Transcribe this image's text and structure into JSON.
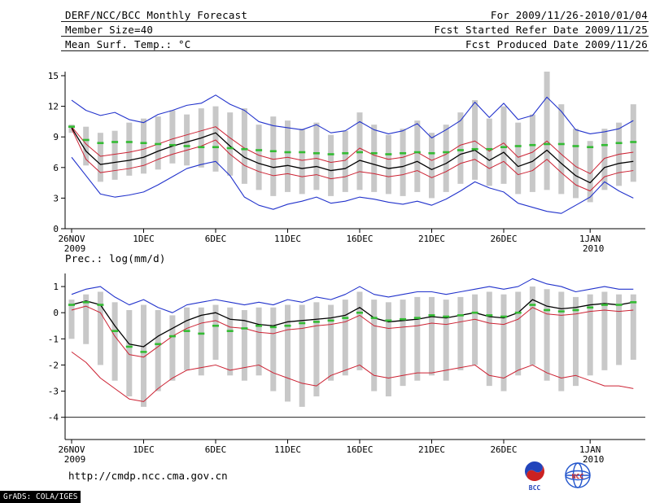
{
  "header": {
    "title": "DERF/NCC/BCC Monthly Forecast",
    "member_size": "Member Size=40",
    "for_range": "For 2009/11/26-2010/01/04",
    "fcst_started": "Fcst Started Refer Date 2009/11/25",
    "fcst_produced": "Fcst Produced Date 2009/11/26"
  },
  "footer": {
    "url": "http://cmdp.ncc.cma.gov.cn",
    "grads_credit": "GrADS: COLA/IGES",
    "bcc_logo_text": "BCC",
    "ncc_logo_text": "NCC"
  },
  "colors": {
    "bars": "#c8c8c8",
    "envelope": "#2233cc",
    "percentile": "#cc2233",
    "mean": "#000000",
    "climatology": "#33bb33"
  },
  "chart_data": [
    {
      "type": "line",
      "title": "Mean Surf. Temp.: °C",
      "x_range": "2009-11-26 to 2010-01-04",
      "n_days": 40,
      "ylim": [
        0,
        15.4
      ],
      "yticks": [
        0,
        3,
        6,
        9,
        12,
        15
      ],
      "xticks": [
        {
          "i": 0,
          "label": "26NOV",
          "sub": "2009"
        },
        {
          "i": 5,
          "label": "1DEC"
        },
        {
          "i": 10,
          "label": "6DEC"
        },
        {
          "i": 15,
          "label": "11DEC"
        },
        {
          "i": 20,
          "label": "16DEC"
        },
        {
          "i": 25,
          "label": "21DEC"
        },
        {
          "i": 30,
          "label": "26DEC"
        },
        {
          "i": 36,
          "label": "1JAN",
          "sub": "2010"
        }
      ],
      "hlines": [],
      "bars": {
        "name": "ensemble-spread",
        "color": "#c8c8c8",
        "hi": [
          10.2,
          10.0,
          9.4,
          9.6,
          10.4,
          10.8,
          11.0,
          11.6,
          11.2,
          11.8,
          12.0,
          11.4,
          11.8,
          10.2,
          11.0,
          10.6,
          9.8,
          10.4,
          9.2,
          9.6,
          11.4,
          10.2,
          9.2,
          9.8,
          10.6,
          9.4,
          10.2,
          11.4,
          12.6,
          10.8,
          12.0,
          10.4,
          11.2,
          15.4,
          12.2,
          9.8,
          8.6,
          9.8,
          10.4,
          12.2
        ],
        "lo": [
          9.4,
          6.2,
          4.6,
          4.8,
          5.2,
          5.4,
          5.8,
          6.4,
          6.2,
          6.0,
          5.6,
          5.2,
          4.4,
          3.8,
          3.2,
          3.6,
          3.4,
          3.8,
          3.2,
          3.6,
          3.8,
          3.6,
          3.4,
          3.2,
          3.6,
          3.0,
          3.6,
          4.4,
          4.8,
          4.2,
          4.4,
          3.4,
          3.6,
          3.8,
          3.4,
          3.0,
          2.6,
          3.8,
          4.2,
          4.6
        ]
      },
      "series": [
        {
          "name": "envelope-max",
          "color": "#2233cc",
          "width": 1.1,
          "values": [
            12.6,
            11.6,
            11.1,
            11.4,
            10.7,
            10.4,
            11.2,
            11.6,
            12.1,
            12.3,
            13.1,
            12.2,
            11.6,
            10.5,
            10.1,
            9.9,
            9.7,
            10.2,
            9.4,
            9.6,
            10.5,
            9.7,
            9.3,
            9.6,
            10.3,
            8.9,
            9.7,
            10.6,
            12.4,
            10.9,
            12.3,
            10.7,
            11.1,
            12.9,
            11.5,
            9.7,
            9.3,
            9.5,
            9.8,
            10.6
          ]
        },
        {
          "name": "percentile-upper",
          "color": "#cc2233",
          "width": 1,
          "values": [
            10.0,
            8.3,
            7.1,
            7.3,
            7.5,
            7.8,
            8.3,
            8.8,
            9.2,
            9.6,
            10.0,
            8.9,
            7.9,
            7.2,
            6.8,
            7.0,
            6.7,
            6.9,
            6.5,
            6.7,
            7.9,
            7.2,
            6.8,
            7.0,
            7.5,
            6.7,
            7.3,
            8.2,
            8.6,
            7.6,
            8.4,
            7.0,
            7.5,
            8.6,
            7.3,
            6.1,
            5.4,
            6.9,
            7.3,
            7.5
          ]
        },
        {
          "name": "percentile-lower",
          "color": "#cc2233",
          "width": 1,
          "values": [
            9.8,
            6.8,
            5.5,
            5.7,
            5.9,
            6.2,
            6.8,
            7.3,
            7.7,
            8.1,
            8.7,
            7.3,
            6.2,
            5.6,
            5.2,
            5.4,
            5.1,
            5.3,
            4.9,
            5.1,
            5.6,
            5.4,
            5.1,
            5.3,
            5.7,
            5.0,
            5.6,
            6.4,
            6.8,
            5.9,
            6.6,
            5.3,
            5.7,
            6.8,
            5.5,
            4.3,
            3.7,
            5.1,
            5.5,
            5.7
          ]
        },
        {
          "name": "envelope-min",
          "color": "#2233cc",
          "width": 1.1,
          "values": [
            7.0,
            5.2,
            3.4,
            3.1,
            3.3,
            3.6,
            4.3,
            5.1,
            5.9,
            6.3,
            6.6,
            5.2,
            3.1,
            2.3,
            1.9,
            2.4,
            2.7,
            3.1,
            2.5,
            2.7,
            3.1,
            2.9,
            2.6,
            2.4,
            2.7,
            2.3,
            2.9,
            3.7,
            4.6,
            4.0,
            3.6,
            2.5,
            2.1,
            1.7,
            1.5,
            2.3,
            3.1,
            4.6,
            3.7,
            3.0
          ]
        },
        {
          "name": "ensemble-mean",
          "color": "#000000",
          "width": 1.3,
          "values": [
            9.9,
            7.6,
            6.3,
            6.5,
            6.7,
            7.0,
            7.6,
            8.1,
            8.5,
            8.9,
            9.4,
            8.1,
            7.0,
            6.4,
            6.0,
            6.2,
            5.9,
            6.1,
            5.7,
            5.9,
            6.7,
            6.3,
            5.9,
            6.1,
            6.6,
            5.8,
            6.4,
            7.3,
            7.7,
            6.7,
            7.5,
            6.1,
            6.6,
            7.7,
            6.4,
            5.2,
            4.5,
            6.0,
            6.4,
            6.6
          ]
        },
        {
          "name": "climatology",
          "color": "#33bb33",
          "style": "dash-markers",
          "values": [
            10.0,
            8.7,
            8.4,
            8.5,
            8.5,
            8.4,
            8.3,
            8.2,
            8.1,
            8.0,
            8.0,
            7.9,
            7.8,
            7.7,
            7.6,
            7.5,
            7.5,
            7.4,
            7.3,
            7.4,
            7.5,
            7.4,
            7.3,
            7.4,
            7.5,
            7.4,
            7.5,
            7.7,
            7.8,
            7.8,
            8.0,
            8.1,
            8.2,
            8.3,
            8.3,
            8.1,
            8.0,
            8.2,
            8.4,
            8.5
          ]
        }
      ]
    },
    {
      "type": "line",
      "title": "Prec.: log(mm/d)",
      "x_range": "2009-11-26 to 2010-01-04",
      "n_days": 40,
      "ylim": [
        -4.85,
        1.5
      ],
      "yticks": [
        1,
        0,
        -1,
        -2,
        -3,
        -4
      ],
      "xticks": [
        {
          "i": 0,
          "label": "26NOV",
          "sub": "2009"
        },
        {
          "i": 5,
          "label": "1DEC"
        },
        {
          "i": 10,
          "label": "6DEC"
        },
        {
          "i": 15,
          "label": "11DEC"
        },
        {
          "i": 20,
          "label": "16DEC"
        },
        {
          "i": 25,
          "label": "21DEC"
        },
        {
          "i": 30,
          "label": "26DEC"
        },
        {
          "i": 36,
          "label": "1JAN",
          "sub": "2010"
        }
      ],
      "hlines": [
        -4
      ],
      "bars": {
        "name": "ensemble-spread",
        "color": "#c8c8c8",
        "hi": [
          0.5,
          0.7,
          0.8,
          0.4,
          0.1,
          0.3,
          0.1,
          -0.1,
          0.2,
          0.2,
          0.3,
          0.2,
          0.1,
          0.2,
          0.2,
          0.3,
          0.3,
          0.4,
          0.3,
          0.5,
          0.8,
          0.5,
          0.4,
          0.5,
          0.6,
          0.6,
          0.5,
          0.6,
          0.7,
          0.8,
          0.7,
          0.8,
          1.0,
          0.9,
          0.8,
          0.6,
          0.7,
          0.8,
          0.7,
          0.7
        ],
        "lo": [
          -1.0,
          -1.2,
          -2.0,
          -2.6,
          -3.2,
          -3.6,
          -3.0,
          -2.6,
          -2.2,
          -2.4,
          -1.8,
          -2.4,
          -2.6,
          -2.4,
          -3.0,
          -3.4,
          -3.6,
          -3.2,
          -2.6,
          -2.4,
          -2.2,
          -3.0,
          -3.2,
          -2.8,
          -2.6,
          -2.4,
          -2.6,
          -2.2,
          -2.0,
          -2.8,
          -3.0,
          -2.4,
          -2.0,
          -2.6,
          -3.0,
          -2.8,
          -2.4,
          -2.2,
          -2.0,
          -1.8
        ]
      },
      "series": [
        {
          "name": "envelope-max",
          "color": "#2233cc",
          "width": 1.1,
          "values": [
            0.7,
            0.9,
            1.0,
            0.6,
            0.3,
            0.5,
            0.2,
            0.0,
            0.3,
            0.4,
            0.5,
            0.4,
            0.3,
            0.4,
            0.3,
            0.5,
            0.4,
            0.6,
            0.5,
            0.7,
            1.0,
            0.7,
            0.6,
            0.7,
            0.8,
            0.8,
            0.7,
            0.8,
            0.9,
            1.0,
            0.9,
            1.0,
            1.3,
            1.1,
            1.0,
            0.8,
            0.9,
            1.0,
            0.9,
            0.9
          ]
        },
        {
          "name": "percentile-upper",
          "color": "#cc2233",
          "width": 1,
          "values": [
            0.1,
            0.25,
            0.0,
            -0.9,
            -1.6,
            -1.7,
            -1.3,
            -0.9,
            -0.6,
            -0.4,
            -0.3,
            -0.55,
            -0.6,
            -0.75,
            -0.8,
            -0.65,
            -0.6,
            -0.5,
            -0.45,
            -0.35,
            -0.1,
            -0.5,
            -0.6,
            -0.55,
            -0.5,
            -0.4,
            -0.45,
            -0.35,
            -0.25,
            -0.4,
            -0.45,
            -0.25,
            0.2,
            -0.05,
            -0.1,
            -0.05,
            0.05,
            0.1,
            0.05,
            0.1
          ]
        },
        {
          "name": "percentile-lower",
          "color": "#cc2233",
          "width": 1,
          "values": [
            -1.5,
            -1.9,
            -2.5,
            -2.9,
            -3.3,
            -3.4,
            -2.9,
            -2.5,
            -2.2,
            -2.1,
            -2.0,
            -2.2,
            -2.1,
            -2.0,
            -2.3,
            -2.5,
            -2.7,
            -2.8,
            -2.4,
            -2.2,
            -2.0,
            -2.4,
            -2.5,
            -2.4,
            -2.3,
            -2.3,
            -2.2,
            -2.1,
            -2.0,
            -2.4,
            -2.5,
            -2.2,
            -2.0,
            -2.3,
            -2.5,
            -2.4,
            -2.6,
            -2.8,
            -2.8,
            -2.9
          ]
        },
        {
          "name": "ensemble-mean",
          "color": "#000000",
          "width": 1.3,
          "values": [
            0.3,
            0.45,
            0.3,
            -0.5,
            -1.2,
            -1.3,
            -0.9,
            -0.6,
            -0.3,
            -0.1,
            0.0,
            -0.25,
            -0.3,
            -0.45,
            -0.5,
            -0.35,
            -0.3,
            -0.25,
            -0.2,
            -0.1,
            0.2,
            -0.2,
            -0.35,
            -0.3,
            -0.25,
            -0.15,
            -0.2,
            -0.1,
            0.0,
            -0.15,
            -0.2,
            0.0,
            0.5,
            0.25,
            0.15,
            0.2,
            0.3,
            0.35,
            0.3,
            0.4
          ]
        },
        {
          "name": "climatology",
          "color": "#33bb33",
          "style": "dash-markers",
          "values": [
            0.3,
            0.4,
            0.3,
            -0.7,
            -1.3,
            -1.5,
            -1.2,
            -0.9,
            -0.7,
            -0.8,
            -0.5,
            -0.7,
            -0.6,
            -0.5,
            -0.55,
            -0.5,
            -0.4,
            -0.35,
            -0.3,
            -0.2,
            0.0,
            -0.2,
            -0.3,
            -0.25,
            -0.2,
            -0.1,
            -0.15,
            -0.1,
            0.0,
            -0.1,
            -0.15,
            0.0,
            0.3,
            0.1,
            0.05,
            0.1,
            0.2,
            0.3,
            0.3,
            0.4
          ]
        }
      ]
    }
  ]
}
